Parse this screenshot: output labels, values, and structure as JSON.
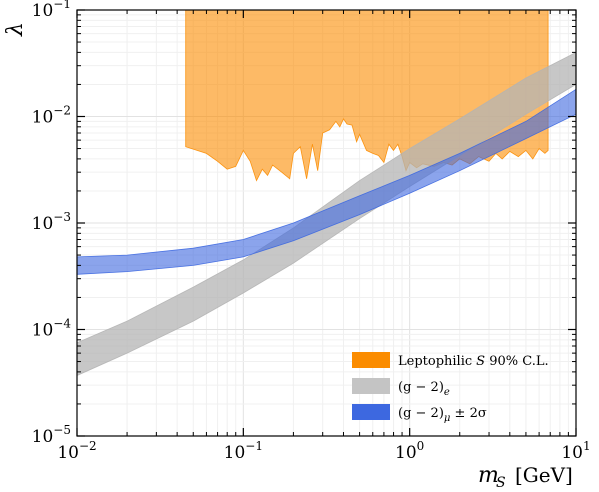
{
  "chart_data": {
    "type": "area",
    "xscale": "log",
    "yscale": "log",
    "xlim": [
      0.01,
      10
    ],
    "ylim": [
      1e-05,
      0.1
    ],
    "xlabel": "m_S [GeV]",
    "ylabel": "λ",
    "grid": true,
    "legend_position": "bottom-right",
    "x_ticks": [
      {
        "base": "10",
        "exp": "−2",
        "value": 0.01
      },
      {
        "base": "10",
        "exp": "−1",
        "value": 0.1
      },
      {
        "base": "10",
        "exp": "0",
        "value": 1
      },
      {
        "base": "10",
        "exp": "1",
        "value": 10
      }
    ],
    "y_ticks": [
      {
        "base": "10",
        "exp": "−5",
        "value": 1e-05
      },
      {
        "base": "10",
        "exp": "−4",
        "value": 0.0001
      },
      {
        "base": "10",
        "exp": "−3",
        "value": 0.001
      },
      {
        "base": "10",
        "exp": "−2",
        "value": 0.01
      },
      {
        "base": "10",
        "exp": "−1",
        "value": 0.1
      }
    ],
    "series": [
      {
        "name": "Leptophilic S 90% C.L.",
        "color": "#fb8c00",
        "fill_opacity": 0.6,
        "kind": "excluded-above",
        "upper": 0.1,
        "lower": [
          [
            0.045,
            0.0052
          ],
          [
            0.06,
            0.0045
          ],
          [
            0.07,
            0.0038
          ],
          [
            0.08,
            0.0032
          ],
          [
            0.09,
            0.0034
          ],
          [
            0.1,
            0.0048
          ],
          [
            0.11,
            0.0038
          ],
          [
            0.12,
            0.0025
          ],
          [
            0.13,
            0.0032
          ],
          [
            0.14,
            0.0028
          ],
          [
            0.15,
            0.0035
          ],
          [
            0.17,
            0.003
          ],
          [
            0.19,
            0.0026
          ],
          [
            0.2,
            0.0045
          ],
          [
            0.22,
            0.0052
          ],
          [
            0.24,
            0.0026
          ],
          [
            0.26,
            0.0055
          ],
          [
            0.28,
            0.0031
          ],
          [
            0.3,
            0.007
          ],
          [
            0.33,
            0.0075
          ],
          [
            0.36,
            0.009
          ],
          [
            0.38,
            0.008
          ],
          [
            0.4,
            0.0095
          ],
          [
            0.42,
            0.0085
          ],
          [
            0.45,
            0.0083
          ],
          [
            0.48,
            0.0058
          ],
          [
            0.5,
            0.0068
          ],
          [
            0.55,
            0.0048
          ],
          [
            0.6,
            0.0045
          ],
          [
            0.65,
            0.0043
          ],
          [
            0.7,
            0.0037
          ],
          [
            0.75,
            0.0055
          ],
          [
            0.8,
            0.0048
          ],
          [
            0.85,
            0.0055
          ],
          [
            0.9,
            0.0042
          ],
          [
            0.95,
            0.0031
          ],
          [
            1.0,
            0.0037
          ],
          [
            1.1,
            0.0033
          ],
          [
            1.2,
            0.0036
          ],
          [
            1.4,
            0.0034
          ],
          [
            1.6,
            0.0037
          ],
          [
            1.8,
            0.0035
          ],
          [
            2.0,
            0.004
          ],
          [
            2.3,
            0.0036
          ],
          [
            2.6,
            0.0042
          ],
          [
            3.0,
            0.0038
          ],
          [
            3.3,
            0.0045
          ],
          [
            3.6,
            0.004
          ],
          [
            4.0,
            0.0047
          ],
          [
            4.5,
            0.0042
          ],
          [
            5.0,
            0.0048
          ],
          [
            5.5,
            0.004
          ],
          [
            6.0,
            0.005
          ],
          [
            6.5,
            0.0045
          ],
          [
            6.8,
            0.0048
          ]
        ]
      },
      {
        "name": "(g − 2)_e",
        "color": "#b4b4b4",
        "fill_opacity": 0.75,
        "kind": "band",
        "upper": [
          [
            0.01,
            7.5e-05
          ],
          [
            0.02,
            0.00012
          ],
          [
            0.05,
            0.00025
          ],
          [
            0.1,
            0.00045
          ],
          [
            0.2,
            0.0009
          ],
          [
            0.5,
            0.0025
          ],
          [
            1.0,
            0.005
          ],
          [
            2.0,
            0.0095
          ],
          [
            5.0,
            0.023
          ],
          [
            10,
            0.04
          ]
        ],
        "lower": [
          [
            0.01,
            3.7e-05
          ],
          [
            0.02,
            6e-05
          ],
          [
            0.05,
            0.00012
          ],
          [
            0.1,
            0.00022
          ],
          [
            0.2,
            0.00042
          ],
          [
            0.5,
            0.0011
          ],
          [
            1.0,
            0.0022
          ],
          [
            2.0,
            0.0043
          ],
          [
            5.0,
            0.0105
          ],
          [
            10,
            0.02
          ]
        ]
      },
      {
        "name": "(g − 2)_μ ± 2σ",
        "color": "#3d68e0",
        "fill_opacity": 0.6,
        "kind": "band",
        "upper": [
          [
            0.01,
            0.00048
          ],
          [
            0.02,
            0.0005
          ],
          [
            0.05,
            0.00058
          ],
          [
            0.1,
            0.0007
          ],
          [
            0.2,
            0.001
          ],
          [
            0.5,
            0.0018
          ],
          [
            1.0,
            0.0028
          ],
          [
            2.0,
            0.0045
          ],
          [
            5.0,
            0.009
          ],
          [
            10,
            0.018
          ]
        ],
        "lower": [
          [
            0.01,
            0.00033
          ],
          [
            0.02,
            0.00035
          ],
          [
            0.05,
            0.0004
          ],
          [
            0.1,
            0.00048
          ],
          [
            0.2,
            0.00068
          ],
          [
            0.5,
            0.0012
          ],
          [
            1.0,
            0.0019
          ],
          [
            2.0,
            0.0031
          ],
          [
            5.0,
            0.0062
          ],
          [
            10,
            0.0105
          ]
        ]
      }
    ]
  },
  "legend": [
    {
      "label": "Leptophilic",
      "var": "S",
      "rest": " 90% C.L.",
      "color": "#fb8c00",
      "opacity": 1.0
    },
    {
      "label": "(g − 2)",
      "sub": "e",
      "rest": "",
      "color": "#c4c4c4",
      "opacity": 1.0
    },
    {
      "label": "(g − 2)",
      "sub": "μ",
      "rest": " ± 2σ",
      "color": "#3d68e0",
      "opacity": 1.0
    }
  ],
  "axis_labels": {
    "x_var": "m",
    "x_sub": "S",
    "x_unit": "[GeV]",
    "y_var": "λ"
  }
}
